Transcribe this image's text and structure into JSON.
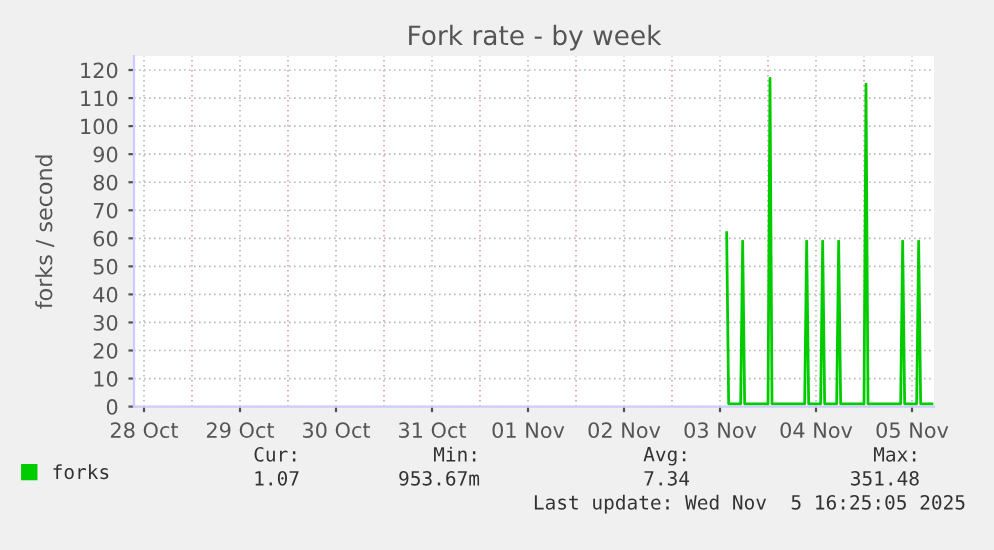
{
  "chart_data": {
    "type": "line",
    "title": "Fork rate - by week",
    "ylabel": "forks / second",
    "x": [
      "2025-11-03T13:40",
      "2025-11-03T14:10",
      "2025-11-03T17:10",
      "2025-11-03T17:40",
      "2025-11-03T18:10",
      "2025-11-04T00:00",
      "2025-11-04T00:30",
      "2025-11-04T01:00",
      "2025-11-04T09:10",
      "2025-11-04T09:40",
      "2025-11-04T10:10",
      "2025-11-04T13:10",
      "2025-11-04T13:40",
      "2025-11-04T14:10",
      "2025-11-04T17:10",
      "2025-11-04T17:40",
      "2025-11-04T18:10",
      "2025-11-05T00:00",
      "2025-11-05T00:30",
      "2025-11-05T01:00",
      "2025-11-05T09:10",
      "2025-11-05T09:40",
      "2025-11-05T10:10",
      "2025-11-05T13:10",
      "2025-11-05T13:40",
      "2025-11-05T14:10",
      "2025-11-05T17:00"
    ],
    "series": [
      {
        "name": "forks",
        "color": "#00cc00",
        "values": [
          62,
          1,
          1,
          59,
          1,
          1,
          117,
          1,
          1,
          59,
          1,
          1,
          59,
          1,
          1,
          59,
          1,
          1,
          115,
          1,
          1,
          59,
          1,
          1,
          59,
          1,
          1
        ]
      }
    ],
    "xlim": [
      "2025-10-28T09:30",
      "2025-11-05T17:30"
    ],
    "xticks": [
      {
        "value": "2025-10-28T12:00",
        "label": "28 Oct"
      },
      {
        "value": "2025-10-29T12:00",
        "label": "29 Oct"
      },
      {
        "value": "2025-10-30T12:00",
        "label": "30 Oct"
      },
      {
        "value": "2025-10-31T12:00",
        "label": "31 Oct"
      },
      {
        "value": "2025-11-01T12:00",
        "label": "01 Nov"
      },
      {
        "value": "2025-11-02T12:00",
        "label": "02 Nov"
      },
      {
        "value": "2025-11-03T12:00",
        "label": "03 Nov"
      },
      {
        "value": "2025-11-04T12:00",
        "label": "04 Nov"
      },
      {
        "value": "2025-11-05T12:00",
        "label": "05 Nov"
      },
      {
        "value": "2025-10-29T00:00",
        "label": null
      },
      {
        "value": "2025-10-30T00:00",
        "label": null
      },
      {
        "value": "2025-10-31T00:00",
        "label": null
      },
      {
        "value": "2025-11-01T00:00",
        "label": null
      },
      {
        "value": "2025-11-02T00:00",
        "label": null
      },
      {
        "value": "2025-11-03T00:00",
        "label": null
      },
      {
        "value": "2025-11-04T00:00",
        "label": null
      },
      {
        "value": "2025-11-05T00:00",
        "label": null
      }
    ],
    "ylim": [
      0,
      125
    ],
    "yticks": [
      0,
      10,
      20,
      30,
      40,
      50,
      60,
      70,
      80,
      90,
      100,
      110,
      120
    ],
    "grid": true,
    "legend": "bottom left",
    "marker": "none",
    "line_style": "solid",
    "annotations": [
      "Cur:",
      "Min:",
      "Avg:",
      "Max:",
      "1.07",
      "953.67m",
      "7.34",
      "351.48",
      "Last update: Wed Nov  5 16:25:05 2025"
    ]
  }
}
